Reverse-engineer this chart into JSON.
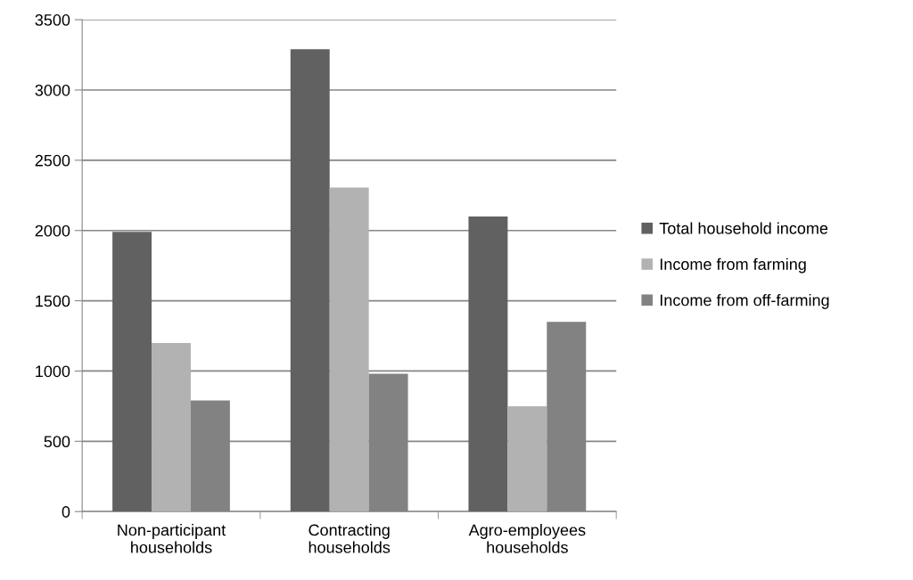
{
  "chart_data": {
    "type": "bar",
    "categories": [
      "Non-participant\nhouseholds",
      "Contracting\nhouseholds",
      "Agro-employees\nhouseholds"
    ],
    "series": [
      {
        "name": "Total household income",
        "color": "#616161",
        "values": [
          1990,
          3290,
          2100
        ]
      },
      {
        "name": "Income from farming",
        "color": "#b2b2b2",
        "values": [
          1200,
          2305,
          750
        ]
      },
      {
        "name": "Income from off-farming",
        "color": "#828282",
        "values": [
          790,
          980,
          1350
        ]
      }
    ],
    "ylim": [
      0,
      3500
    ],
    "yticks": [
      0,
      500,
      1000,
      1500,
      2000,
      2500,
      3000,
      3500
    ],
    "grid": "y",
    "legend": "right"
  }
}
